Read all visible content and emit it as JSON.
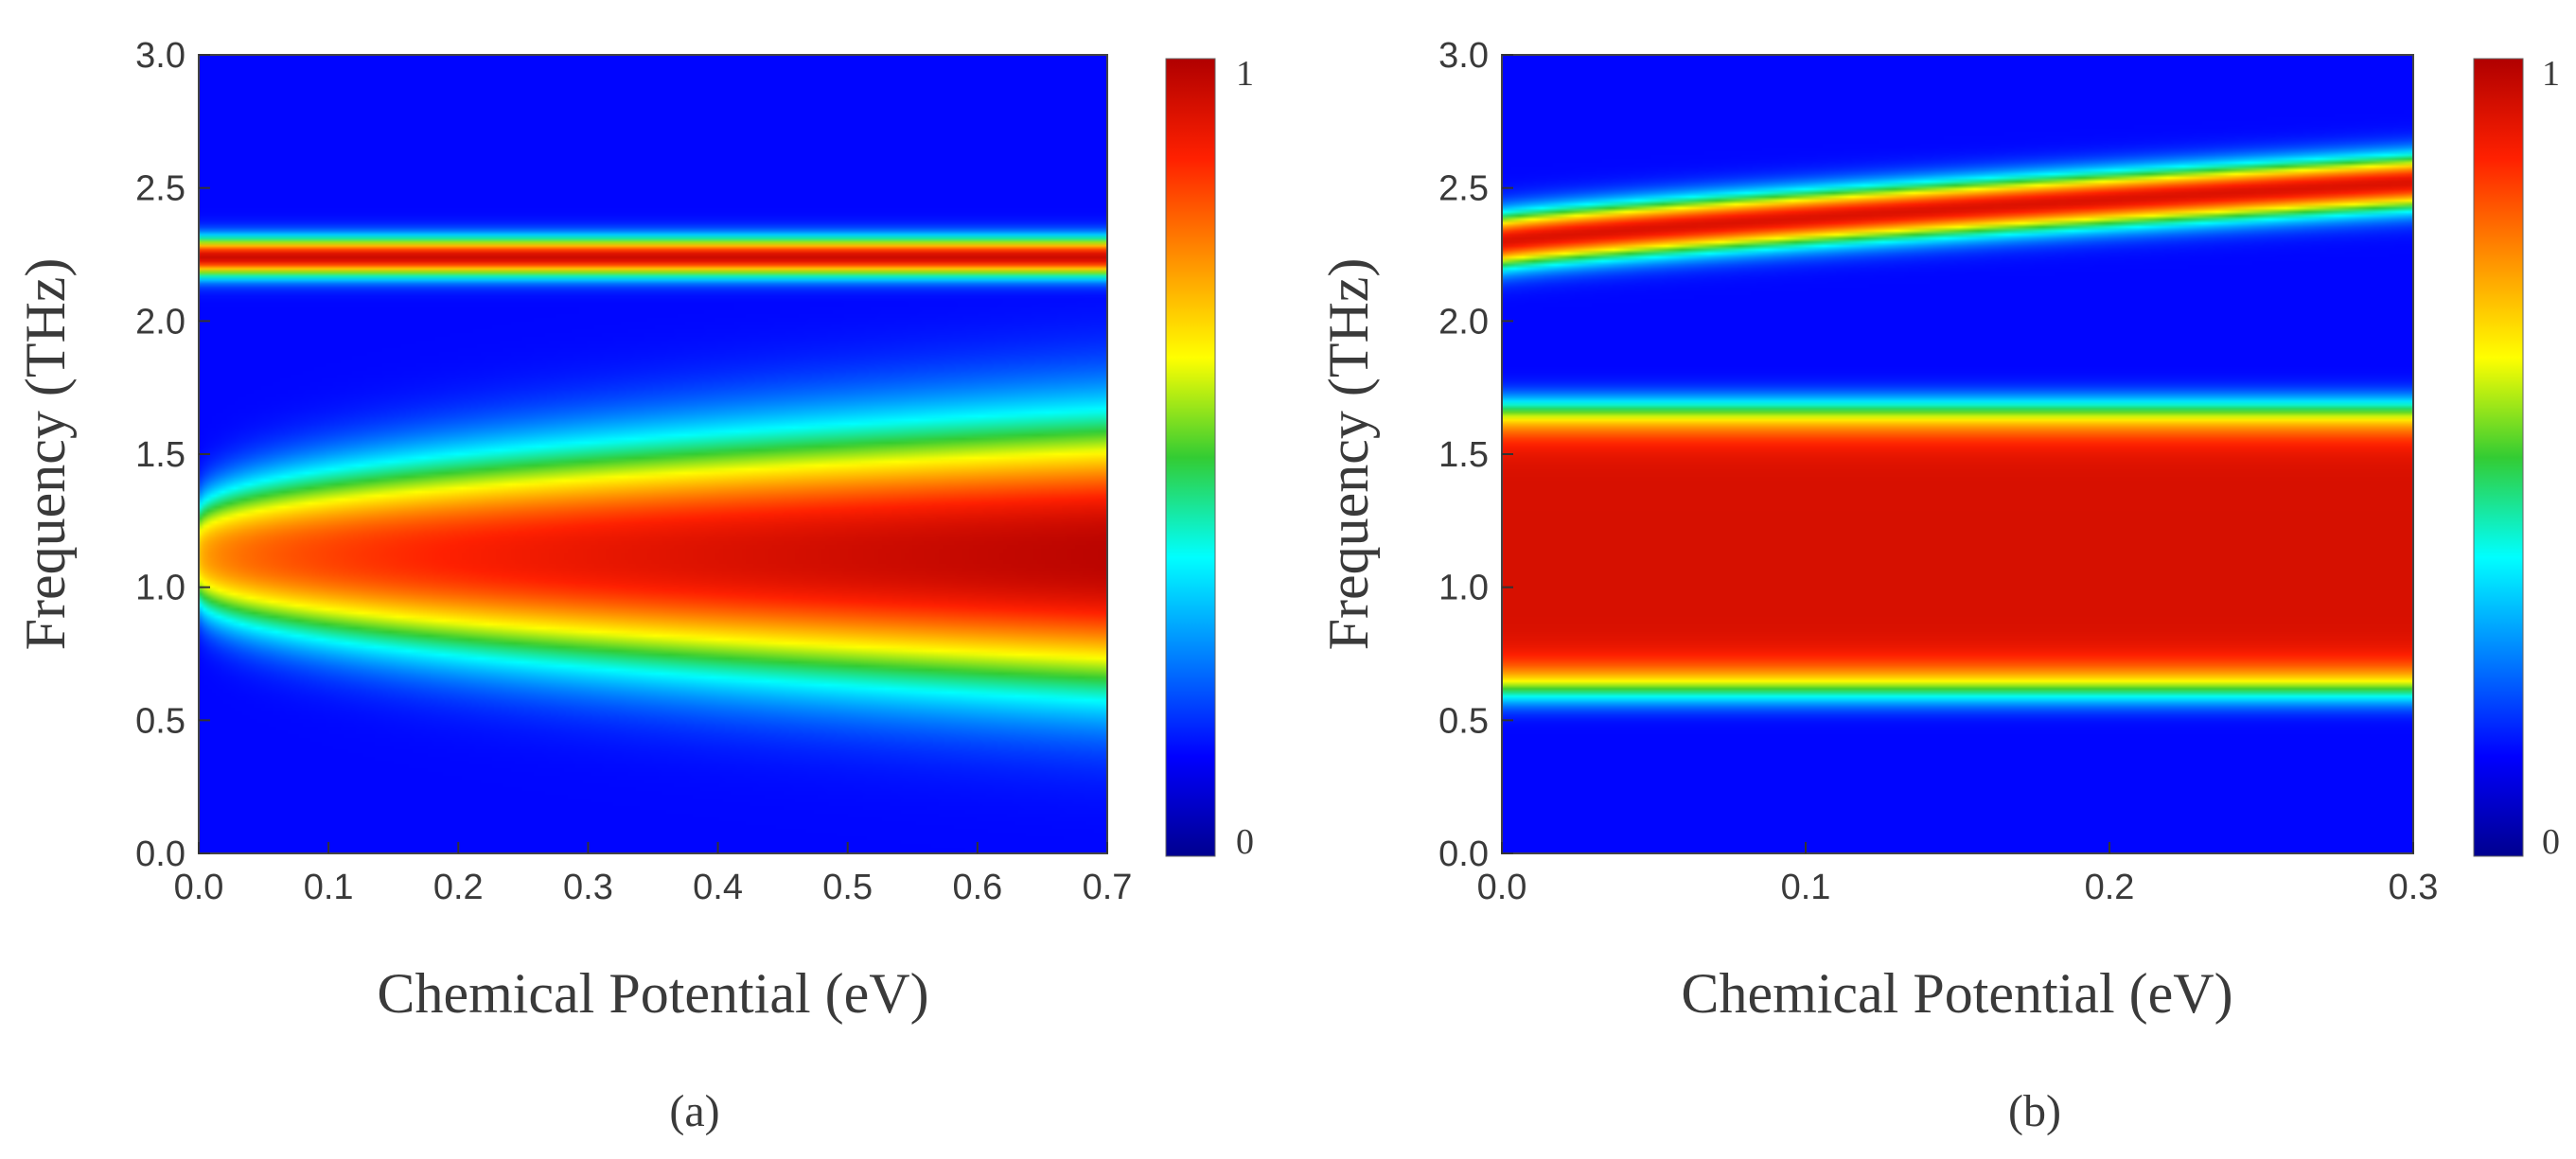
{
  "chart_data": [
    {
      "type": "heatmap",
      "panel": "(a)",
      "xlabel": "Chemical Potential (eV)",
      "ylabel": "Frequency (THz)",
      "xlim": [
        0.0,
        0.7
      ],
      "ylim": [
        0.0,
        3.0
      ],
      "x_ticks": [
        "0.0",
        "0.1",
        "0.2",
        "0.3",
        "0.4",
        "0.5",
        "0.6",
        "0.7"
      ],
      "y_ticks": [
        "0.0",
        "0.5",
        "1.0",
        "1.5",
        "2.0",
        "2.5",
        "3.0"
      ],
      "colorbar": {
        "min_label": "0",
        "max_label": "1",
        "min": 0,
        "max": 1,
        "colormap": "jet"
      },
      "features": [
        {
          "name": "narrow band",
          "center_freq": 2.24,
          "half_width": 0.07,
          "peak": 0.95
        },
        {
          "name": "broad band",
          "center_freq": 1.12,
          "peak_at_0": 0.6,
          "peak_at_max": 0.98,
          "half_width_at_0": 0.18,
          "half_width_at_max": 0.5
        }
      ]
    },
    {
      "type": "heatmap",
      "panel": "(b)",
      "xlabel": "Chemical Potential (eV)",
      "ylabel": "Frequency (THz)",
      "xlim": [
        0.0,
        0.3
      ],
      "ylim": [
        0.0,
        3.0
      ],
      "x_ticks": [
        "0.0",
        "0.1",
        "0.2",
        "0.3"
      ],
      "y_ticks": [
        "0.0",
        "0.5",
        "1.0",
        "1.5",
        "2.0",
        "2.5",
        "3.0"
      ],
      "colorbar": {
        "min_label": "0",
        "max_label": "1",
        "min": 0,
        "max": 1,
        "colormap": "jet"
      },
      "features": [
        {
          "name": "rising band",
          "freq_at_0": 2.3,
          "freq_at_max": 2.52,
          "half_width": 0.1,
          "peak": 0.92
        },
        {
          "name": "broad band",
          "freq_low": 0.6,
          "freq_high": 1.68,
          "peak": 0.93
        }
      ]
    }
  ]
}
